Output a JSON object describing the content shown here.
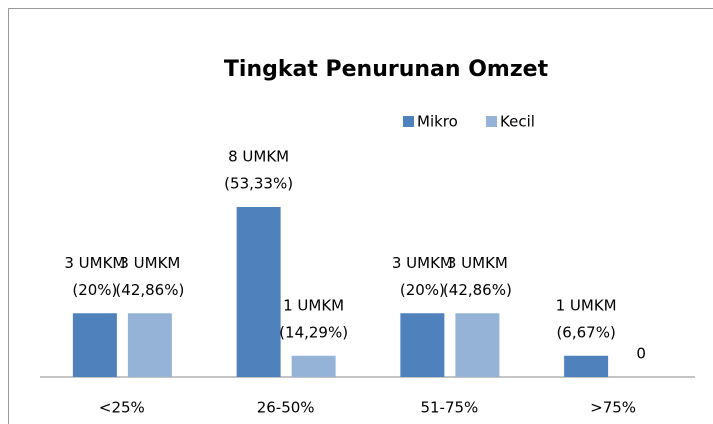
{
  "chart_data": {
    "type": "bar",
    "title": "Tingkat Penurunan Omzet",
    "categories": [
      "<25%",
      "26-50%",
      "51-75%",
      ">75%"
    ],
    "series": [
      {
        "name": "Mikro",
        "color": "#4f81bd",
        "values": [
          3,
          8,
          3,
          1
        ],
        "value_labels": [
          [
            "3 UMKM",
            "(20%)"
          ],
          [
            "8 UMKM",
            "(53,33%)"
          ],
          [
            "3 UMKM",
            "(20%)"
          ],
          [
            "1 UMKM",
            "(6,67%)"
          ]
        ]
      },
      {
        "name": "Kecil",
        "color": "#95b3d7",
        "values": [
          3,
          1,
          3,
          0
        ],
        "value_labels": [
          [
            "3 UMKM",
            "(42,86%)"
          ],
          [
            "1 UMKM",
            "(14,29%)"
          ],
          [
            "3 UMKM",
            "(42,86%)"
          ],
          [
            "0"
          ]
        ]
      }
    ],
    "legend": "top-right"
  }
}
